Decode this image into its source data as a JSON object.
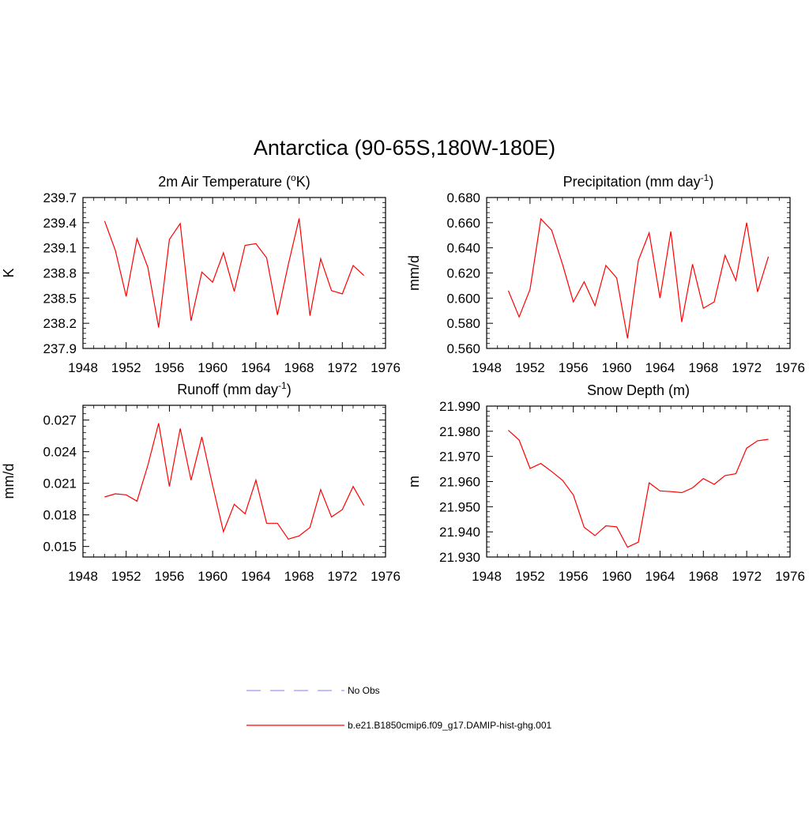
{
  "page": {
    "title": "Antarctica (90-65S,180W-180E)"
  },
  "legend": [
    {
      "label": "No Obs",
      "color": "#9999ff",
      "style": "dashed"
    },
    {
      "label": "b.e21.B1850cmip6.f09_g17.DAMIP-hist-ghg.001",
      "color": "#ff0000",
      "style": "solid"
    }
  ],
  "chart_data": [
    {
      "type": "line",
      "title_main": "2m Air Temperature (",
      "title_sup": "o",
      "title_tail": "K)",
      "ylabel": "K",
      "xlim": [
        1948,
        1976
      ],
      "xticks": [
        "1948",
        "1952",
        "1956",
        "1960",
        "1964",
        "1968",
        "1972",
        "1976"
      ],
      "ylim": [
        237.9,
        239.7
      ],
      "yticks": [
        "237.9",
        "238.2",
        "238.5",
        "238.8",
        "239.1",
        "239.4",
        "239.7"
      ],
      "color": "#ff0000",
      "x": [
        1950,
        1951,
        1952,
        1953,
        1954,
        1955,
        1956,
        1957,
        1958,
        1959,
        1960,
        1961,
        1962,
        1963,
        1964,
        1965,
        1966,
        1967,
        1968,
        1969,
        1970,
        1971,
        1972,
        1973,
        1974
      ],
      "y": [
        239.42,
        239.07,
        238.52,
        239.21,
        238.87,
        238.15,
        239.2,
        239.39,
        238.23,
        238.81,
        238.69,
        239.04,
        238.58,
        239.13,
        239.15,
        238.98,
        238.3,
        238.9,
        239.45,
        238.29,
        238.97,
        238.59,
        238.55,
        238.89,
        238.77
      ]
    },
    {
      "type": "line",
      "title_main": "Precipitation (mm day",
      "title_sup": "-1",
      "title_tail": ")",
      "ylabel": "mm/d",
      "xlim": [
        1948,
        1976
      ],
      "xticks": [
        "1948",
        "1952",
        "1956",
        "1960",
        "1964",
        "1968",
        "1972",
        "1976"
      ],
      "ylim": [
        0.56,
        0.68
      ],
      "yticks": [
        "0.560",
        "0.580",
        "0.600",
        "0.620",
        "0.640",
        "0.660",
        "0.680"
      ],
      "color": "#ff0000",
      "x": [
        1950,
        1951,
        1952,
        1953,
        1954,
        1955,
        1956,
        1957,
        1958,
        1959,
        1960,
        1961,
        1962,
        1963,
        1964,
        1965,
        1966,
        1967,
        1968,
        1969,
        1970,
        1971,
        1972,
        1973,
        1974
      ],
      "y": [
        0.606,
        0.585,
        0.607,
        0.663,
        0.654,
        0.627,
        0.597,
        0.613,
        0.594,
        0.626,
        0.616,
        0.568,
        0.63,
        0.652,
        0.6,
        0.653,
        0.581,
        0.627,
        0.592,
        0.597,
        0.634,
        0.614,
        0.66,
        0.605,
        0.633
      ]
    },
    {
      "type": "line",
      "title_main": "Runoff (mm day",
      "title_sup": "-1",
      "title_tail": ")",
      "ylabel": "mm/d",
      "xlim": [
        1948,
        1976
      ],
      "xticks": [
        "1948",
        "1952",
        "1956",
        "1960",
        "1964",
        "1968",
        "1972",
        "1976"
      ],
      "ylim": [
        0.014,
        0.0284
      ],
      "yticks": [
        "0.015",
        "0.018",
        "0.021",
        "0.024",
        "0.027"
      ],
      "color": "#ff0000",
      "x": [
        1950,
        1951,
        1952,
        1953,
        1954,
        1955,
        1956,
        1957,
        1958,
        1959,
        1960,
        1961,
        1962,
        1963,
        1964,
        1965,
        1966,
        1967,
        1968,
        1969,
        1970,
        1971,
        1972,
        1973,
        1974
      ],
      "y": [
        0.0197,
        0.02,
        0.0199,
        0.0193,
        0.0227,
        0.0267,
        0.0207,
        0.0262,
        0.0213,
        0.0254,
        0.0208,
        0.0164,
        0.019,
        0.0181,
        0.0213,
        0.0172,
        0.0172,
        0.0157,
        0.016,
        0.0168,
        0.0204,
        0.0178,
        0.0185,
        0.0207,
        0.0189
      ]
    },
    {
      "type": "line",
      "title_main": "Snow Depth (m)",
      "title_sup": "",
      "title_tail": "",
      "ylabel": "m",
      "xlim": [
        1948,
        1976
      ],
      "xticks": [
        "1948",
        "1952",
        "1956",
        "1960",
        "1964",
        "1968",
        "1972",
        "1976"
      ],
      "ylim": [
        21.93,
        21.99
      ],
      "yticks": [
        "21.930",
        "21.940",
        "21.950",
        "21.960",
        "21.970",
        "21.980",
        "21.990"
      ],
      "color": "#ff0000",
      "x": [
        1950,
        1951,
        1952,
        1953,
        1954,
        1955,
        1956,
        1957,
        1958,
        1959,
        1960,
        1961,
        1962,
        1963,
        1964,
        1965,
        1966,
        1967,
        1968,
        1969,
        1970,
        1971,
        1972,
        1973,
        1974
      ],
      "y": [
        21.9804,
        21.9765,
        21.9652,
        21.9672,
        21.964,
        21.9605,
        21.9547,
        21.9418,
        21.9385,
        21.9424,
        21.942,
        21.9339,
        21.9359,
        21.9595,
        21.9563,
        21.956,
        21.9556,
        21.9575,
        21.9612,
        21.9589,
        21.9624,
        21.9631,
        21.9733,
        21.9762,
        21.9768
      ]
    }
  ]
}
